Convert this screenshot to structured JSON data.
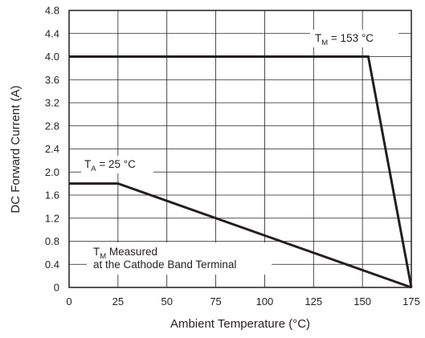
{
  "chart_data": {
    "type": "line",
    "xlabel": "Ambient Temperature (°C)",
    "ylabel": "DC Forward Current (A)",
    "xlim": [
      0,
      175
    ],
    "ylim": [
      0,
      4.8
    ],
    "x_ticks": [
      "0",
      "25",
      "50",
      "75",
      "100",
      "125",
      "150",
      "175"
    ],
    "y_ticks": [
      "0",
      "0.4",
      "0.8",
      "1.2",
      "1.6",
      "2.0",
      "2.4",
      "2.8",
      "3.2",
      "3.6",
      "4.0",
      "4.4",
      "4.8"
    ],
    "grid": true,
    "series": [
      {
        "name": "T_M = 153 °C",
        "x": [
          0,
          153,
          175
        ],
        "y": [
          4.0,
          4.0,
          0
        ]
      },
      {
        "name": "T_A = 25 °C",
        "x": [
          0,
          25,
          175
        ],
        "y": [
          1.8,
          1.8,
          0
        ]
      }
    ],
    "annotations": {
      "tm": {
        "main": "T",
        "sub": "M",
        "rest": " = 153 °C"
      },
      "ta": {
        "main": "T",
        "sub": "A",
        "rest": " = 25 °C"
      },
      "note": {
        "main": "T",
        "sub": "M",
        "rest": " Measured",
        "line2": "at the Cathode Band Terminal"
      }
    },
    "colors": {
      "line": "#231f20",
      "grid": "#231f20",
      "text": "#231f20"
    }
  }
}
